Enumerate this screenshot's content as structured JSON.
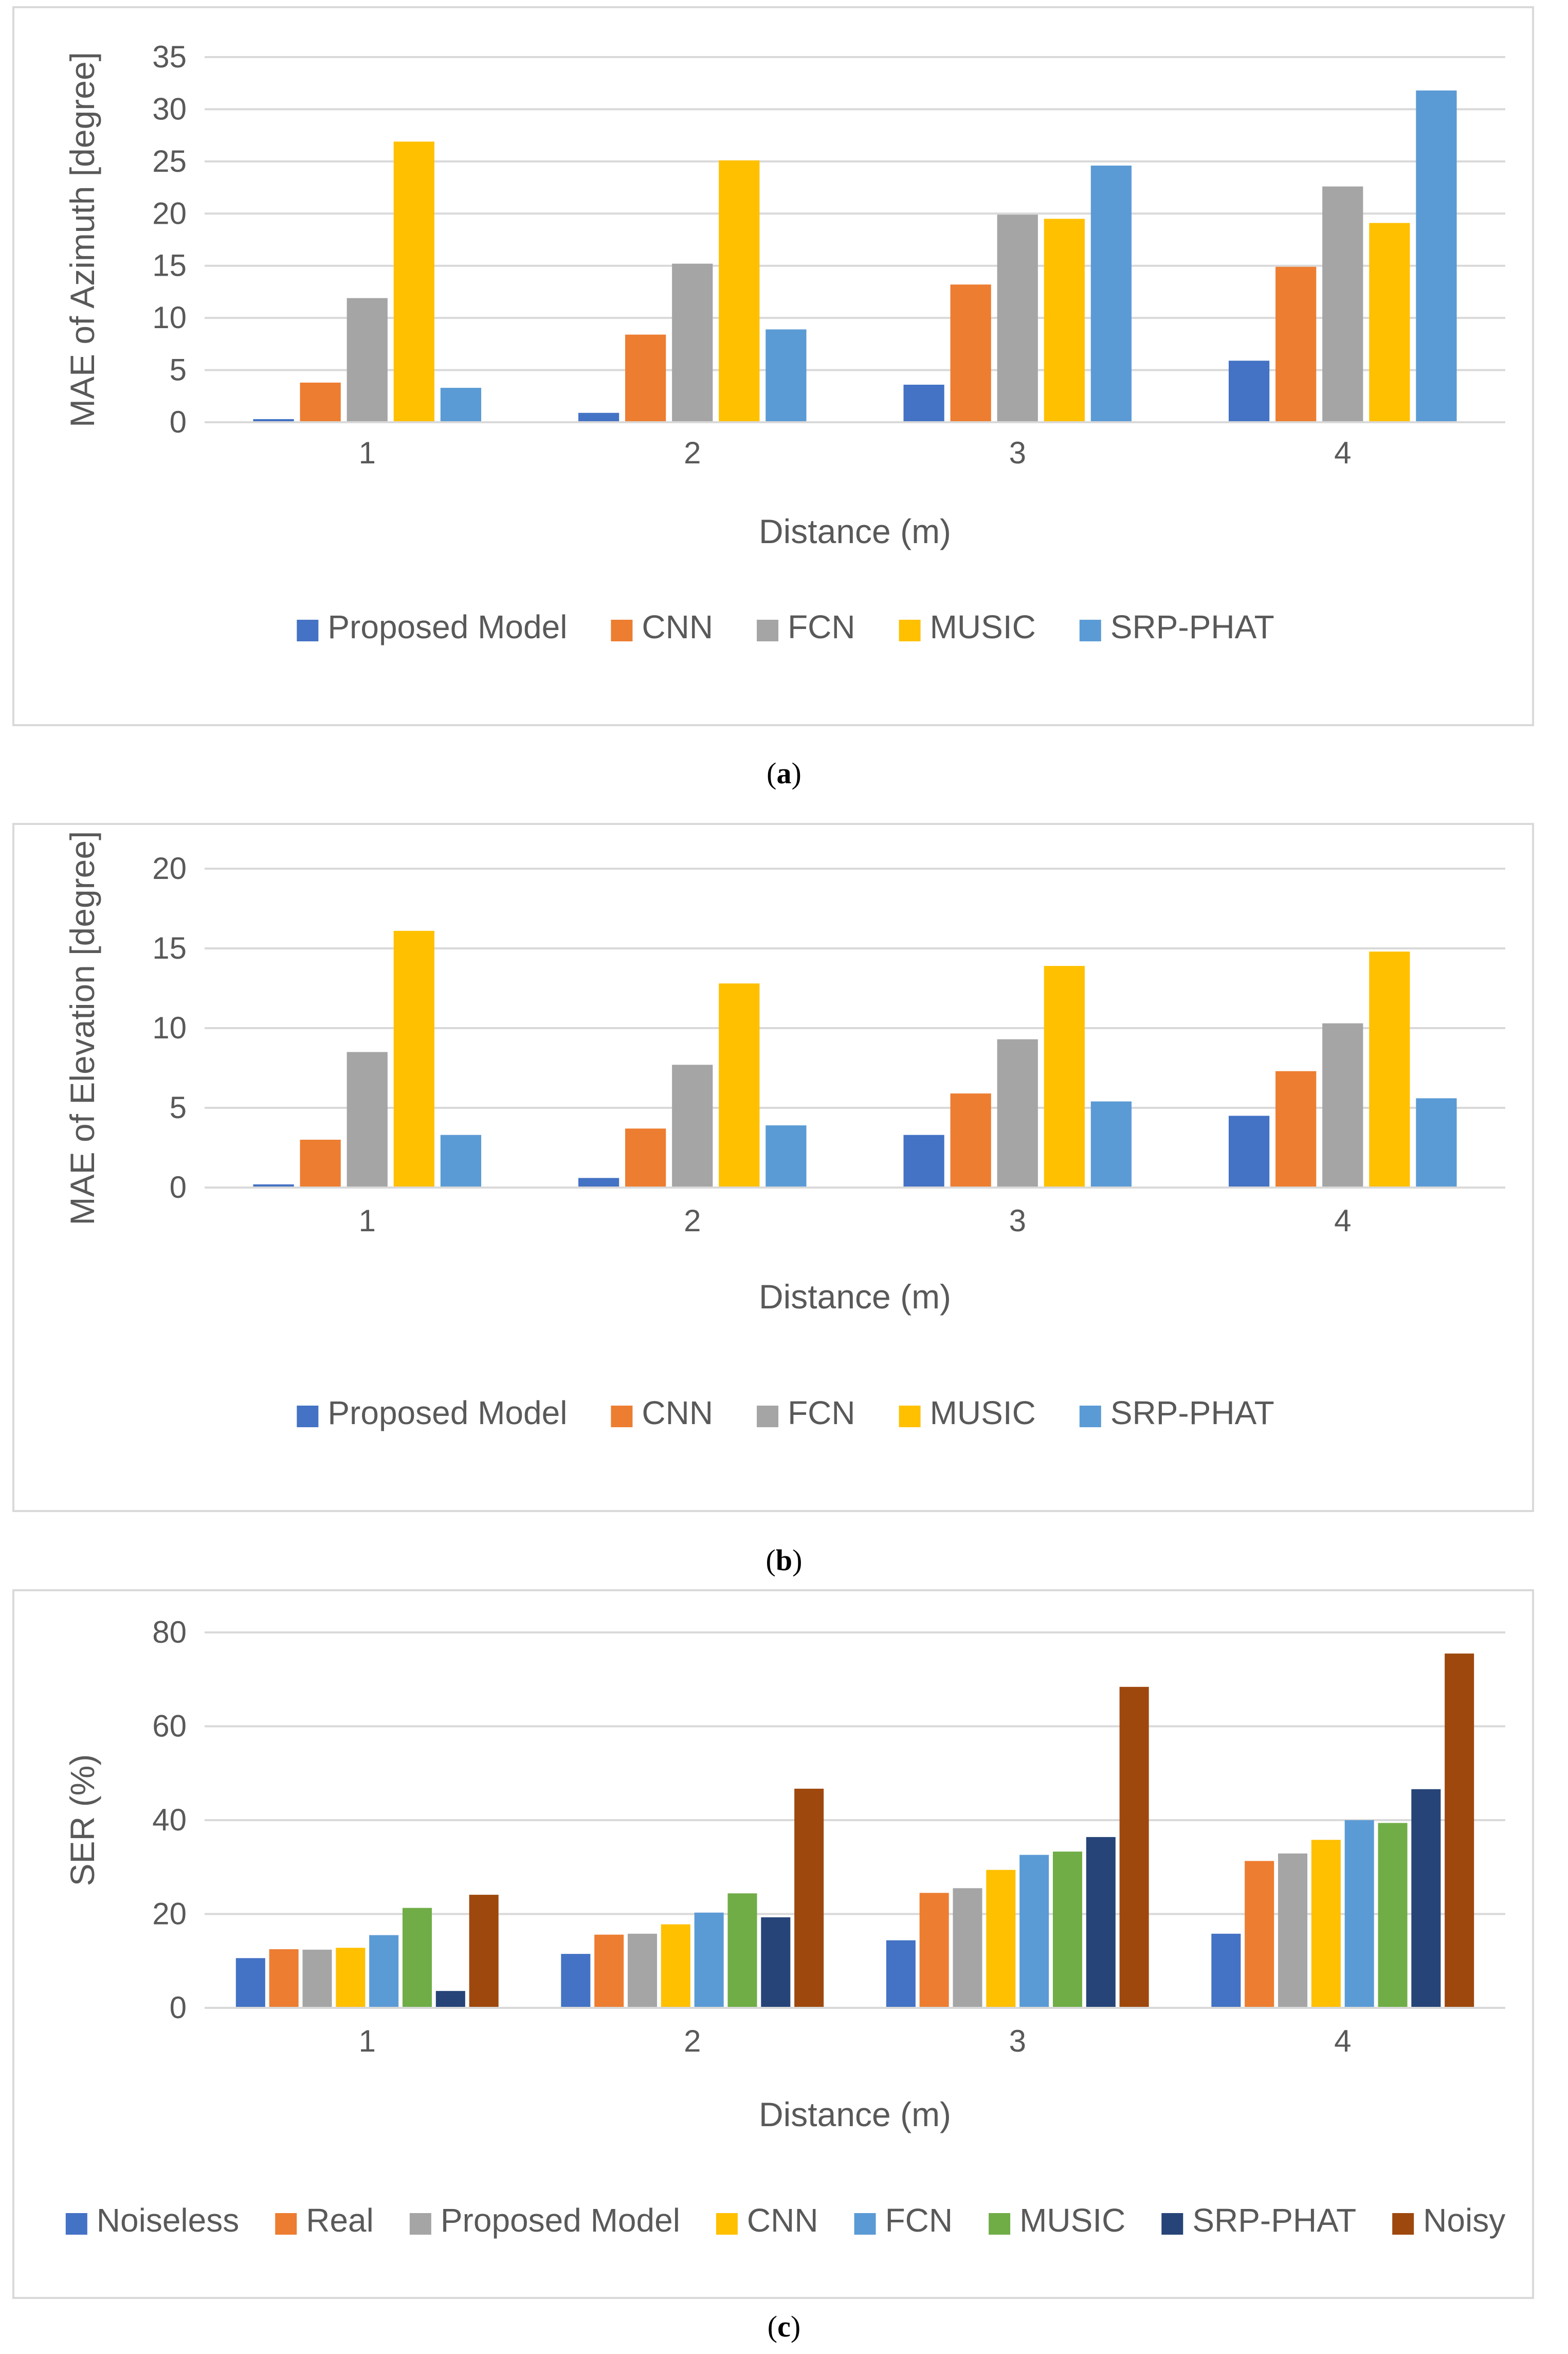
{
  "chart_data": [
    {
      "type": "bar",
      "title": "",
      "xlabel": "Distance (m)",
      "ylabel": "MAE of Azimuth [degree]",
      "ylim": [
        0,
        35
      ],
      "ytick_step": 5,
      "categories": [
        "1",
        "2",
        "3",
        "4"
      ],
      "caption_letter": "a",
      "series": [
        {
          "name": "Proposed Model",
          "color": "#4472c4",
          "values": [
            0.3,
            0.9,
            3.6,
            5.9
          ]
        },
        {
          "name": "CNN",
          "color": "#ed7d31",
          "values": [
            3.8,
            8.4,
            13.2,
            14.9
          ]
        },
        {
          "name": "FCN",
          "color": "#a5a5a5",
          "values": [
            11.9,
            15.2,
            19.9,
            22.6
          ]
        },
        {
          "name": "MUSIC",
          "color": "#ffc000",
          "values": [
            26.9,
            25.1,
            19.5,
            19.1
          ]
        },
        {
          "name": "SRP-PHAT",
          "color": "#5b9bd5",
          "values": [
            3.3,
            8.9,
            24.6,
            31.8
          ]
        }
      ]
    },
    {
      "type": "bar",
      "title": "",
      "xlabel": "Distance (m)",
      "ylabel": "MAE of Elevation [degree]",
      "ylim": [
        0,
        20
      ],
      "ytick_step": 5,
      "categories": [
        "1",
        "2",
        "3",
        "4"
      ],
      "caption_letter": "b",
      "series": [
        {
          "name": "Proposed Model",
          "color": "#4472c4",
          "values": [
            0.2,
            0.6,
            3.3,
            4.5
          ]
        },
        {
          "name": "CNN",
          "color": "#ed7d31",
          "values": [
            3.0,
            3.7,
            5.9,
            7.3
          ]
        },
        {
          "name": "FCN",
          "color": "#a5a5a5",
          "values": [
            8.5,
            7.7,
            9.3,
            10.3
          ]
        },
        {
          "name": "MUSIC",
          "color": "#ffc000",
          "values": [
            16.1,
            12.8,
            13.9,
            14.8
          ]
        },
        {
          "name": "SRP-PHAT",
          "color": "#5b9bd5",
          "values": [
            3.3,
            3.9,
            5.4,
            5.6
          ]
        }
      ]
    },
    {
      "type": "bar",
      "title": "",
      "xlabel": "Distance (m)",
      "ylabel": "SER (%)",
      "ylim": [
        0,
        80
      ],
      "ytick_step": 20,
      "categories": [
        "1",
        "2",
        "3",
        "4"
      ],
      "caption_letter": "c",
      "series": [
        {
          "name": "Noiseless",
          "color": "#4472c4",
          "values": [
            10.6,
            11.5,
            14.4,
            15.8
          ]
        },
        {
          "name": "Real",
          "color": "#ed7d31",
          "values": [
            12.5,
            15.6,
            24.5,
            31.3
          ]
        },
        {
          "name": "Proposed Model",
          "color": "#a5a5a5",
          "values": [
            12.4,
            15.8,
            25.5,
            32.9
          ]
        },
        {
          "name": "CNN",
          "color": "#ffc000",
          "values": [
            12.8,
            17.8,
            29.4,
            35.8
          ]
        },
        {
          "name": "FCN",
          "color": "#5b9bd5",
          "values": [
            15.5,
            20.3,
            32.6,
            40.0
          ]
        },
        {
          "name": "MUSIC",
          "color": "#70ad47",
          "values": [
            21.3,
            24.4,
            33.3,
            39.4
          ]
        },
        {
          "name": "SRP-PHAT",
          "color": "#264478",
          "values": [
            3.6,
            19.3,
            36.4,
            46.6
          ]
        },
        {
          "name": "Noisy",
          "color": "#9e480e",
          "values": [
            24.1,
            46.7,
            68.4,
            75.5
          ]
        }
      ]
    }
  ]
}
